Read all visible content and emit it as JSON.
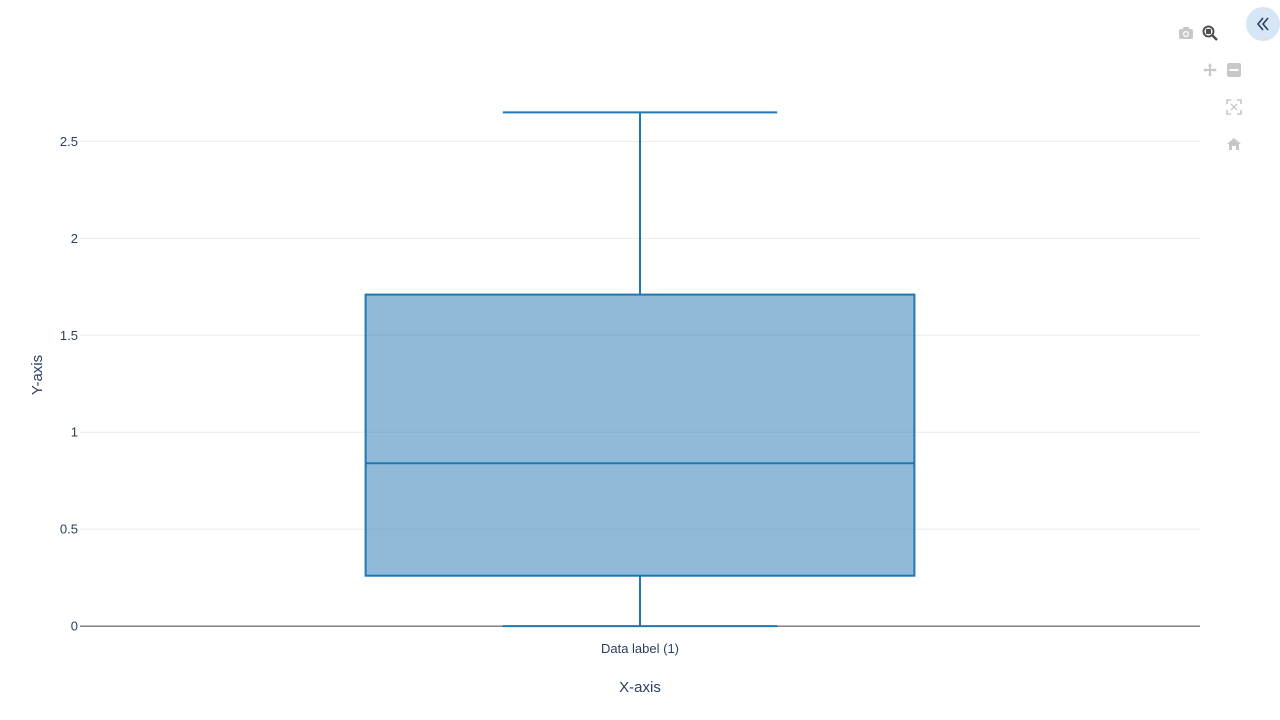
{
  "chart_data": {
    "type": "box",
    "title": "",
    "xlabel": "X-axis",
    "ylabel": "Y-axis",
    "categories": [
      "Data label (1)"
    ],
    "boxes": [
      {
        "category": "Data label (1)",
        "min": 0.0,
        "q1": 0.26,
        "median": 0.84,
        "q3": 1.71,
        "max": 2.65
      }
    ],
    "ylim": [
      -0.02,
      2.92
    ],
    "yticks": [
      0,
      0.5,
      1,
      1.5,
      2,
      2.5
    ],
    "ytick_labels": [
      "0",
      "0.5",
      "1",
      "1.5",
      "2",
      "2.5"
    ],
    "grid": true,
    "colors": {
      "box_fill": "#1f77b4",
      "box_line": "#1f77b4",
      "grid": "#ebebeb",
      "zero_line": "#444444",
      "text": "#2a3f5f"
    }
  },
  "modebar": {
    "buttons": [
      {
        "name": "camera-icon"
      },
      {
        "name": "zoom-icon"
      },
      {
        "name": "pan-icon"
      },
      {
        "name": "zoom-out-icon"
      },
      {
        "name": "autoscale-icon"
      },
      {
        "name": "home-icon"
      },
      {
        "name": "collapse-icon"
      }
    ]
  }
}
